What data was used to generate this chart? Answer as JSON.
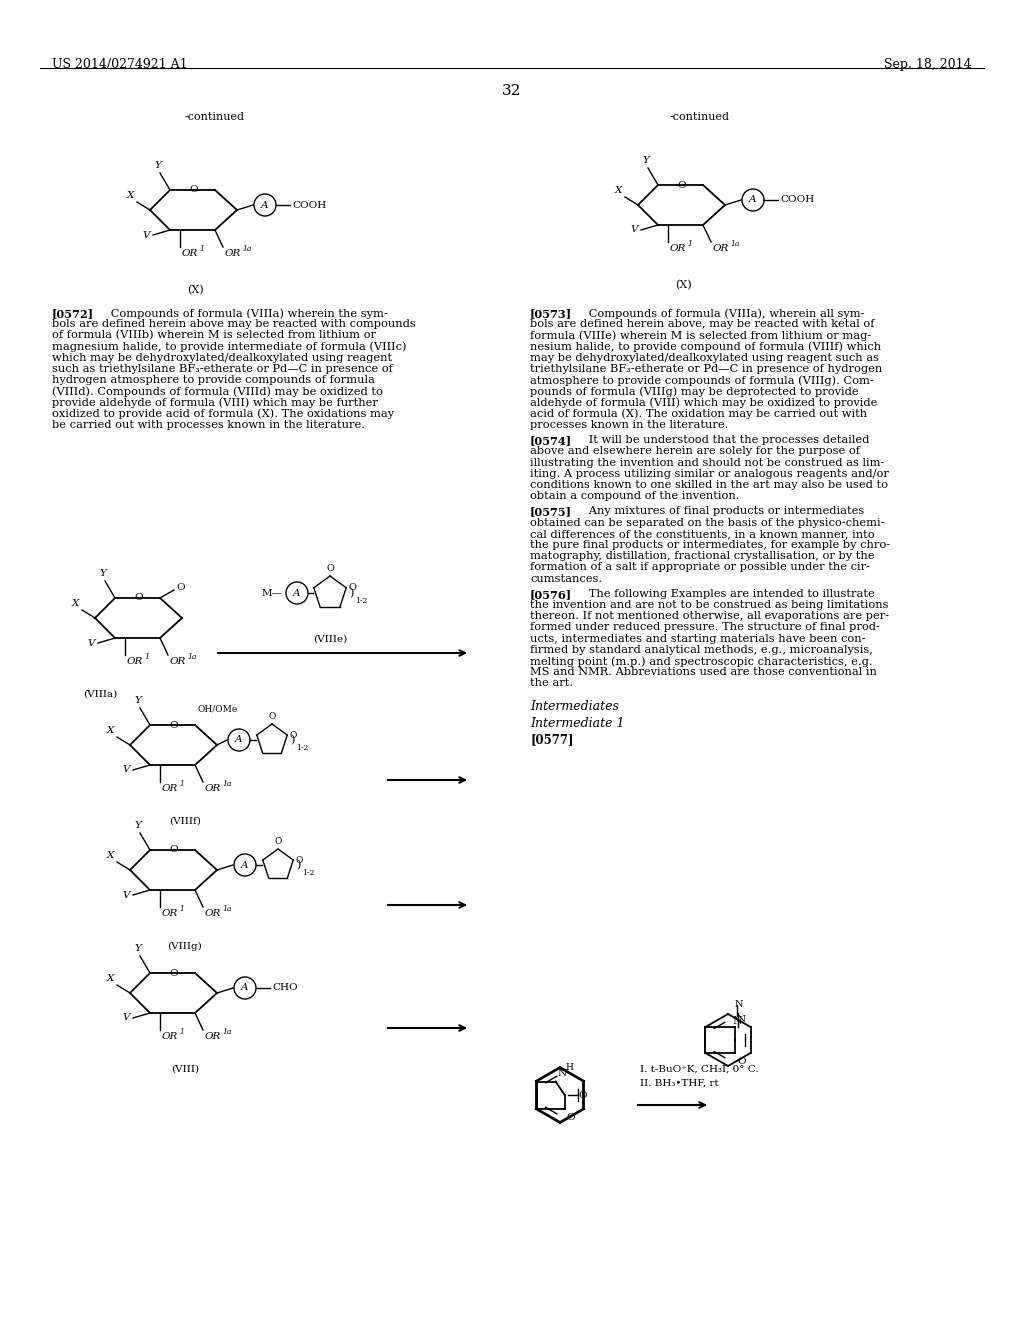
{
  "bg": "#ffffff",
  "header_left": "US 2014/0274921 A1",
  "header_right": "Sep. 18, 2014",
  "page_num": "32",
  "continued_left": "-continued",
  "continued_right": "-continued",
  "label_X_left": "(X)",
  "label_X_right": "(X)",
  "p0572": "[0572]  Compounds of formula (VIIIa) wherein the sym-\nbols are defined herein above may be reacted with compounds\nof formula (VIIIb) wherein M is selected from lithium or\nmagnesium halide, to provide intermediate of formula (VIIIc)\nwhich may be dehydroxylated/dealkoxylated using reagent\nsuch as triethylsilane BF₃-etherate or Pd—C in presence of\nhydrogen atmosphere to provide compounds of formula\n(VIIId). Compounds of formula (VIIId) may be oxidized to\nprovide aldehyde of formula (VIII) which may be further\noxidized to provide acid of formula (X). The oxidations may\nbe carried out with processes known in the literature.",
  "p0573_lines": [
    "[0573]  Compounds of formula (VIIIa), wherein all sym-",
    "bols are defined herein above, may be reacted with ketal of",
    "formula (VIIIe) wherein M is selected from lithium or mag-",
    "nesium halide, to provide compound of formula (VIIIf) which",
    "may be dehydroxylated/dealkoxylated using reagent such as",
    "triethylsilane BF₃-etherate or Pd—C in presence of hydrogen",
    "atmosphere to provide compounds of formula (VIIIg). Com-",
    "pounds of formula (VIIIg) may be deprotected to provide",
    "aldehyde of formula (VIII) which may be oxidized to provide",
    "acid of formula (X). The oxidation may be carried out with",
    "processes known in the literature."
  ],
  "p0574_lines": [
    "[0574]  It will be understood that the processes detailed",
    "above and elsewhere herein are solely for the purpose of",
    "illustrating the invention and should not be construed as lim-",
    "iting. A process utilizing similar or analogous reagents and/or",
    "conditions known to one skilled in the art may also be used to",
    "obtain a compound of the invention."
  ],
  "p0575_lines": [
    "[0575]  Any mixtures of final products or intermediates",
    "obtained can be separated on the basis of the physico-chemi-",
    "cal differences of the constituents, in a known manner, into",
    "the pure final products or intermediates, for example by chro-",
    "matography, distillation, fractional crystallisation, or by the",
    "formation of a salt if appropriate or possible under the cir-",
    "cumstances."
  ],
  "p0576_lines": [
    "[0576]  The following Examples are intended to illustrate",
    "the invention and are not to be construed as being limitations",
    "thereon. If not mentioned otherwise, all evaporations are per-",
    "formed under reduced pressure. The structure of final prod-",
    "ucts, intermediates and starting materials have been con-",
    "firmed by standard analytical methods, e.g., microanalysis,",
    "melting point (m.p.) and spectroscopic characteristics, e.g.",
    "MS and NMR. Abbreviations used are those conventional in",
    "the art."
  ],
  "intermediates_label": "Intermediates",
  "int1_label": "Intermediate 1",
  "p0577_tag": "[0577]",
  "rxn_label1": "I. t-BuO⁺K, CH₃I, 0° C.",
  "rxn_label2": "II. BH₃•THF, rt"
}
